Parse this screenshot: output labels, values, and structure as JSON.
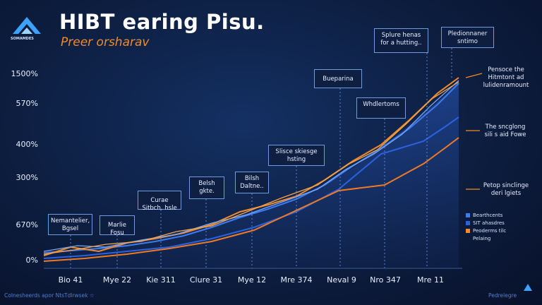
{
  "header": {
    "title": "HIBT earing Pisu.",
    "subtitle": "Preer orsharav",
    "logo_text": "SOMAMDES"
  },
  "axis": {
    "y_labels": [
      "1500%",
      "570%",
      "400%",
      "300%",
      "670%",
      "0%"
    ],
    "x_labels": [
      "Bio 41",
      "Mye 22",
      "Kie 311",
      "Clure 31",
      "Mye 12",
      "Mre 374",
      "Neval 9",
      "Nro 347",
      "Mre 11"
    ]
  },
  "callouts": [
    "Nemantelier,\nBgsel",
    "Marlie\nFosu",
    "Curae\nSitbch. hsle",
    "Belsh\ngkte.",
    "Bilsh\nDaltne..",
    "Slisce skiesge\nhsting",
    "Bueparina",
    "Whdlertoms",
    "Splure henas\nfor a hutting..",
    "Pledionnaner\nsntimo"
  ],
  "notes": [
    "Pensoce the\nHitmtont ad\nlulidenramount",
    "The sncglong\nsili s aid Fowe",
    "Petop sinclinge\nderi lgiets"
  ],
  "legend": [
    "Bearthcents",
    "SIT ahasdres",
    "Peoderms tilc",
    "Pelaing"
  ],
  "footer": {
    "left": "Colnesheerds apor NtsTdlrwsek ☆",
    "right": "Pedrelegre"
  }
}
